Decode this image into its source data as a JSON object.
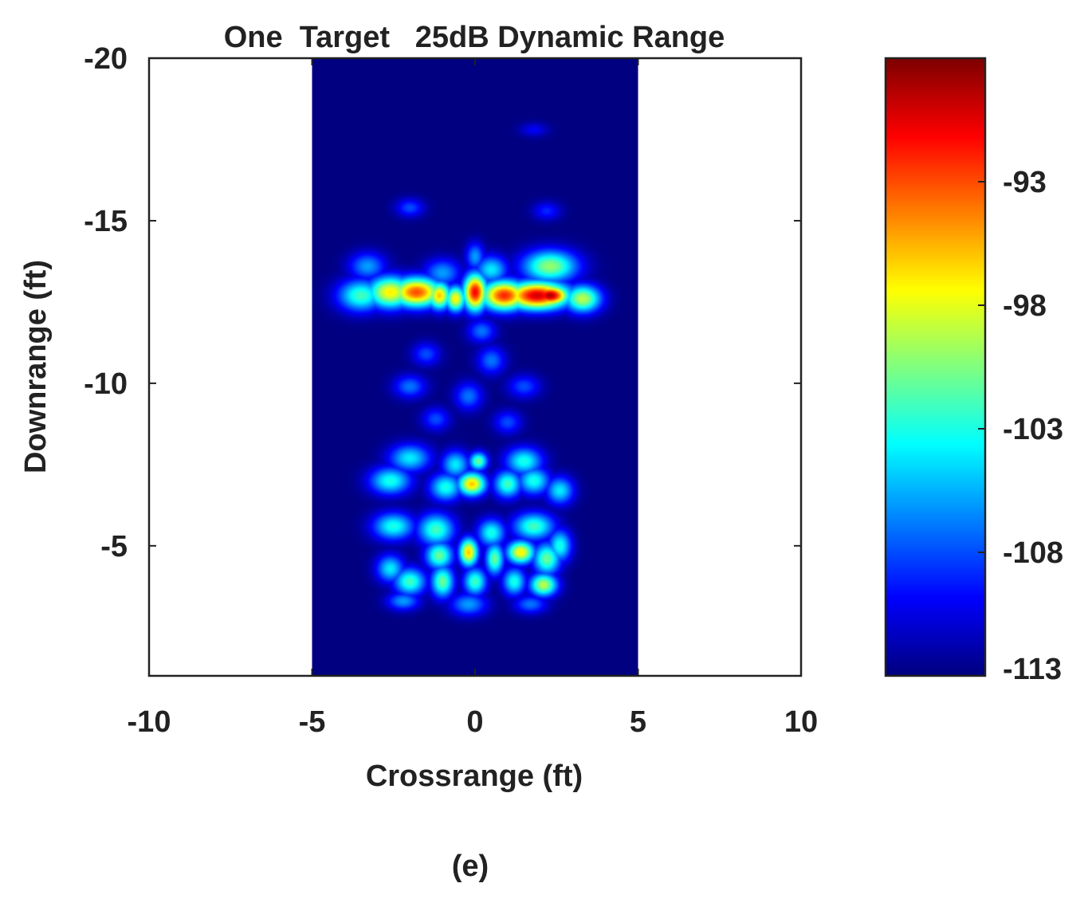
{
  "panel_label": "(e)",
  "chart_data": {
    "type": "heatmap",
    "title": "One  Target   25dB Dynamic Range",
    "xlabel": "Crossrange (ft)",
    "ylabel": "Downrange (ft)",
    "xlim": [
      -10,
      10
    ],
    "ylim": [
      -20,
      -1
    ],
    "y_axis_reversed": true,
    "x_ticks": [
      -10,
      -5,
      0,
      5,
      10
    ],
    "y_ticks": [
      -20,
      -15,
      -10,
      -5
    ],
    "x_tick_labels": [
      "-10",
      "-5",
      "0",
      "5",
      "10"
    ],
    "y_tick_labels": [
      "-20",
      "-15",
      "-10",
      "-5"
    ],
    "image_extent": {
      "x": [
        -5,
        5
      ],
      "y": [
        -20,
        -1
      ]
    },
    "colorbar": {
      "range": [
        -113,
        -88
      ],
      "ticks": [
        -93,
        -98,
        -103,
        -108,
        -113
      ],
      "tick_labels": [
        "-93",
        "-98",
        "-103",
        "-108",
        "-113"
      ],
      "colormap": "jet"
    },
    "background_value": -113,
    "blobs": [
      {
        "x": -3.5,
        "y": -12.7,
        "value": -102,
        "sx": 0.5,
        "sy": 0.35
      },
      {
        "x": -2.6,
        "y": -12.8,
        "value": -97,
        "sx": 0.5,
        "sy": 0.35
      },
      {
        "x": -1.8,
        "y": -12.8,
        "value": -93,
        "sx": 0.55,
        "sy": 0.32
      },
      {
        "x": -1.1,
        "y": -12.7,
        "value": -96,
        "sx": 0.25,
        "sy": 0.3
      },
      {
        "x": -0.6,
        "y": -12.6,
        "value": -97,
        "sx": 0.22,
        "sy": 0.28
      },
      {
        "x": 0.0,
        "y": -12.8,
        "value": -91,
        "sx": 0.25,
        "sy": 0.4
      },
      {
        "x": 0.9,
        "y": -12.7,
        "value": -92,
        "sx": 0.5,
        "sy": 0.32
      },
      {
        "x": 1.9,
        "y": -12.7,
        "value": -90,
        "sx": 0.7,
        "sy": 0.3
      },
      {
        "x": 2.3,
        "y": -12.7,
        "value": -89,
        "sx": 0.4,
        "sy": 0.22
      },
      {
        "x": 3.3,
        "y": -12.6,
        "value": -99,
        "sx": 0.4,
        "sy": 0.3
      },
      {
        "x": 2.3,
        "y": -13.6,
        "value": -100,
        "sx": 0.6,
        "sy": 0.35
      },
      {
        "x": -3.3,
        "y": -13.6,
        "value": -106,
        "sx": 0.4,
        "sy": 0.3
      },
      {
        "x": -1.0,
        "y": -13.4,
        "value": -106,
        "sx": 0.4,
        "sy": 0.3
      },
      {
        "x": 0.5,
        "y": -13.5,
        "value": -104,
        "sx": 0.35,
        "sy": 0.3
      },
      {
        "x": 0.0,
        "y": -13.9,
        "value": -106,
        "sx": 0.2,
        "sy": 0.3
      },
      {
        "x": -2.0,
        "y": -15.4,
        "value": -108,
        "sx": 0.3,
        "sy": 0.2
      },
      {
        "x": 2.2,
        "y": -15.3,
        "value": -109,
        "sx": 0.3,
        "sy": 0.2
      },
      {
        "x": 1.8,
        "y": -17.8,
        "value": -110,
        "sx": 0.3,
        "sy": 0.15
      },
      {
        "x": 0.2,
        "y": -11.6,
        "value": -107,
        "sx": 0.3,
        "sy": 0.25
      },
      {
        "x": -1.5,
        "y": -10.9,
        "value": -108,
        "sx": 0.3,
        "sy": 0.25
      },
      {
        "x": 0.5,
        "y": -10.7,
        "value": -107,
        "sx": 0.3,
        "sy": 0.3
      },
      {
        "x": -2.0,
        "y": -9.9,
        "value": -107,
        "sx": 0.35,
        "sy": 0.25
      },
      {
        "x": -0.2,
        "y": -9.6,
        "value": -107,
        "sx": 0.3,
        "sy": 0.3
      },
      {
        "x": 1.5,
        "y": -9.9,
        "value": -108,
        "sx": 0.35,
        "sy": 0.25
      },
      {
        "x": -1.2,
        "y": -8.9,
        "value": -108,
        "sx": 0.3,
        "sy": 0.25
      },
      {
        "x": 1.0,
        "y": -8.8,
        "value": -108,
        "sx": 0.3,
        "sy": 0.25
      },
      {
        "x": -2.0,
        "y": -7.7,
        "value": -104,
        "sx": 0.45,
        "sy": 0.3
      },
      {
        "x": -0.6,
        "y": -7.5,
        "value": -104,
        "sx": 0.3,
        "sy": 0.3
      },
      {
        "x": 0.1,
        "y": -7.6,
        "value": -101,
        "sx": 0.2,
        "sy": 0.2
      },
      {
        "x": 1.5,
        "y": -7.6,
        "value": -103,
        "sx": 0.4,
        "sy": 0.3
      },
      {
        "x": -2.6,
        "y": -7.0,
        "value": -103,
        "sx": 0.45,
        "sy": 0.3
      },
      {
        "x": -0.9,
        "y": -6.8,
        "value": -103,
        "sx": 0.35,
        "sy": 0.3
      },
      {
        "x": -0.1,
        "y": -6.9,
        "value": -96,
        "sx": 0.3,
        "sy": 0.25
      },
      {
        "x": 1.0,
        "y": -6.9,
        "value": -102,
        "sx": 0.3,
        "sy": 0.3
      },
      {
        "x": 1.8,
        "y": -7.0,
        "value": -103,
        "sx": 0.35,
        "sy": 0.3
      },
      {
        "x": 2.6,
        "y": -6.7,
        "value": -104,
        "sx": 0.3,
        "sy": 0.3
      },
      {
        "x": -2.5,
        "y": -5.6,
        "value": -103,
        "sx": 0.45,
        "sy": 0.3
      },
      {
        "x": -1.2,
        "y": -5.5,
        "value": -102,
        "sx": 0.4,
        "sy": 0.35
      },
      {
        "x": 0.5,
        "y": -5.4,
        "value": -103,
        "sx": 0.3,
        "sy": 0.3
      },
      {
        "x": 1.8,
        "y": -5.6,
        "value": -102,
        "sx": 0.45,
        "sy": 0.3
      },
      {
        "x": -1.1,
        "y": -4.7,
        "value": -101,
        "sx": 0.3,
        "sy": 0.3
      },
      {
        "x": -0.2,
        "y": -4.8,
        "value": -96,
        "sx": 0.2,
        "sy": 0.3
      },
      {
        "x": 0.6,
        "y": -4.6,
        "value": -101,
        "sx": 0.2,
        "sy": 0.35
      },
      {
        "x": 1.4,
        "y": -4.8,
        "value": -97,
        "sx": 0.3,
        "sy": 0.25
      },
      {
        "x": 2.2,
        "y": -4.6,
        "value": -101,
        "sx": 0.3,
        "sy": 0.35
      },
      {
        "x": -2.0,
        "y": -3.9,
        "value": -102,
        "sx": 0.35,
        "sy": 0.3
      },
      {
        "x": -1.0,
        "y": -3.9,
        "value": -101,
        "sx": 0.25,
        "sy": 0.35
      },
      {
        "x": 0.0,
        "y": -3.9,
        "value": -102,
        "sx": 0.25,
        "sy": 0.3
      },
      {
        "x": 1.2,
        "y": -3.9,
        "value": -103,
        "sx": 0.25,
        "sy": 0.3
      },
      {
        "x": 2.1,
        "y": -3.8,
        "value": -99,
        "sx": 0.3,
        "sy": 0.25
      },
      {
        "x": -2.6,
        "y": -4.3,
        "value": -104,
        "sx": 0.3,
        "sy": 0.3
      },
      {
        "x": 2.6,
        "y": -5.0,
        "value": -103,
        "sx": 0.25,
        "sy": 0.35
      },
      {
        "x": -0.2,
        "y": -3.2,
        "value": -106,
        "sx": 0.4,
        "sy": 0.25
      },
      {
        "x": 1.7,
        "y": -3.2,
        "value": -107,
        "sx": 0.35,
        "sy": 0.2
      },
      {
        "x": -2.2,
        "y": -3.3,
        "value": -106,
        "sx": 0.35,
        "sy": 0.2
      }
    ]
  }
}
